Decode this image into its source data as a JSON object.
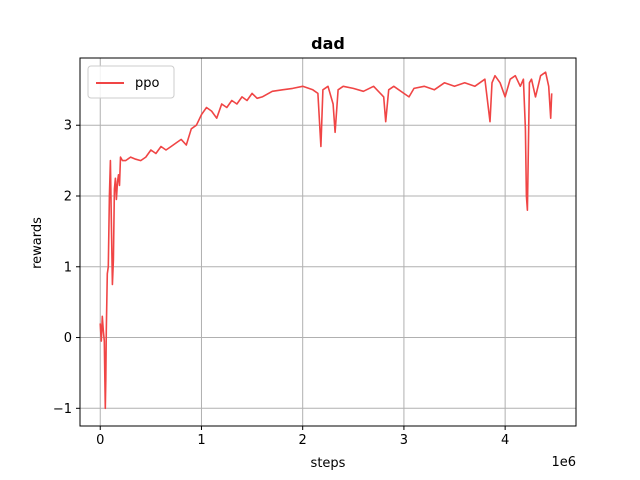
{
  "chart_data": {
    "type": "line",
    "title": "dad",
    "xlabel": "steps",
    "ylabel": "rewards",
    "x_offset_label": "1e6",
    "xlim": [
      -200000.0,
      4700000.0
    ],
    "ylim": [
      -1.25,
      3.95
    ],
    "xticks": [
      0,
      1000000,
      2000000,
      3000000,
      4000000
    ],
    "xtick_labels": [
      "0",
      "1",
      "2",
      "3",
      "4"
    ],
    "yticks": [
      -1,
      0,
      1,
      2,
      3
    ],
    "ytick_labels": [
      "−1",
      "0",
      "1",
      "2",
      "3"
    ],
    "grid": true,
    "legend_position": "upper-left",
    "series": [
      {
        "name": "ppo",
        "color": "#f04545",
        "x": [
          0,
          10000,
          20000,
          30000,
          40000,
          50000,
          55000,
          60000,
          70000,
          80000,
          90000,
          100000,
          110000,
          120000,
          130000,
          140000,
          150000,
          160000,
          170000,
          180000,
          190000,
          200000,
          220000,
          250000,
          300000,
          350000,
          400000,
          450000,
          500000,
          550000,
          600000,
          650000,
          700000,
          750000,
          800000,
          850000,
          900000,
          950000,
          1000000,
          1050000,
          1100000,
          1150000,
          1200000,
          1250000,
          1300000,
          1350000,
          1400000,
          1450000,
          1500000,
          1550000,
          1600000,
          1700000,
          1800000,
          1900000,
          2000000,
          2100000,
          2150000,
          2180000,
          2200000,
          2250000,
          2300000,
          2320000,
          2350000,
          2400000,
          2500000,
          2600000,
          2700000,
          2800000,
          2820000,
          2850000,
          2900000,
          3000000,
          3050000,
          3100000,
          3200000,
          3300000,
          3400000,
          3500000,
          3600000,
          3700000,
          3800000,
          3850000,
          3870000,
          3900000,
          3950000,
          4000000,
          4050000,
          4100000,
          4150000,
          4180000,
          4200000,
          4210000,
          4220000,
          4240000,
          4260000,
          4300000,
          4350000,
          4400000,
          4430000,
          4450000,
          4460000
        ],
        "y": [
          0.2,
          -0.05,
          0.3,
          0.1,
          -0.05,
          -1.0,
          -0.6,
          0.1,
          0.9,
          1.0,
          2.0,
          2.5,
          1.6,
          0.75,
          1.1,
          2.1,
          2.25,
          1.95,
          2.2,
          2.3,
          2.15,
          2.55,
          2.5,
          2.5,
          2.55,
          2.52,
          2.5,
          2.55,
          2.65,
          2.6,
          2.7,
          2.65,
          2.7,
          2.75,
          2.8,
          2.72,
          2.95,
          3.0,
          3.15,
          3.25,
          3.2,
          3.1,
          3.3,
          3.25,
          3.35,
          3.3,
          3.4,
          3.35,
          3.45,
          3.38,
          3.4,
          3.48,
          3.5,
          3.52,
          3.55,
          3.5,
          3.45,
          2.7,
          3.5,
          3.55,
          3.3,
          2.9,
          3.5,
          3.55,
          3.52,
          3.48,
          3.55,
          3.4,
          3.05,
          3.5,
          3.55,
          3.45,
          3.4,
          3.52,
          3.55,
          3.5,
          3.6,
          3.55,
          3.6,
          3.55,
          3.65,
          3.05,
          3.6,
          3.7,
          3.6,
          3.4,
          3.65,
          3.7,
          3.55,
          3.65,
          2.95,
          2.0,
          1.8,
          3.6,
          3.65,
          3.4,
          3.7,
          3.75,
          3.55,
          3.1,
          3.45
        ]
      }
    ]
  }
}
